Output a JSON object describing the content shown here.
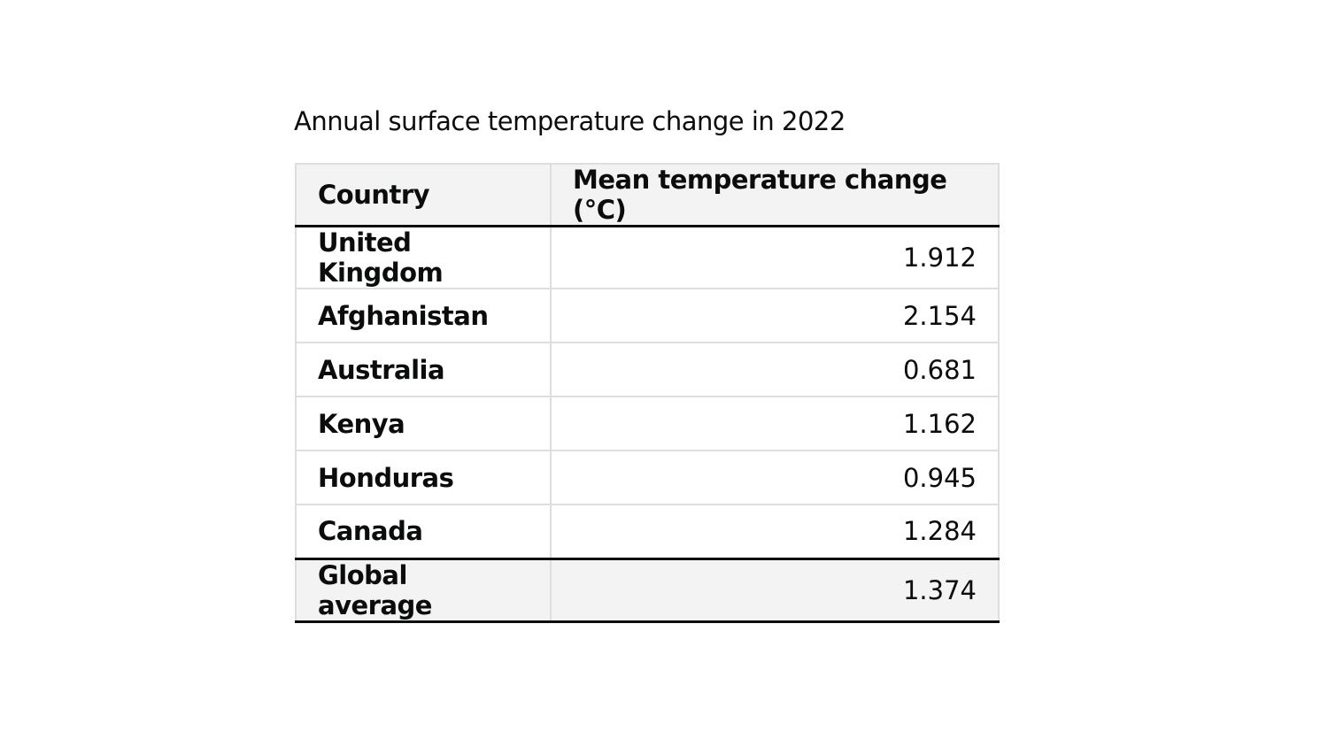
{
  "caption": "Annual surface temperature change in 2022",
  "table": {
    "headers": [
      "Country",
      "Mean temperature change (°C)"
    ],
    "rows": [
      {
        "country": "United Kingdom",
        "value": "1.912"
      },
      {
        "country": "Afghanistan",
        "value": "2.154"
      },
      {
        "country": "Australia",
        "value": "0.681"
      },
      {
        "country": "Kenya",
        "value": "1.162"
      },
      {
        "country": "Honduras",
        "value": "0.945"
      },
      {
        "country": "Canada",
        "value": "1.284"
      }
    ],
    "footer": {
      "label": "Global average",
      "value": "1.374"
    }
  },
  "colors": {
    "text": "#0b0c0c",
    "header_background": "#f3f3f3",
    "grid_line": "#dedede",
    "emphasis_rule": "#0b0c0c"
  }
}
